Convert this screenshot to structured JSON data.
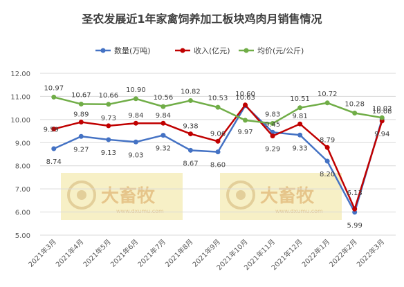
{
  "chart_data": {
    "type": "line",
    "title": "圣农发展近1年家禽饲养加工板块鸡肉月销售情况",
    "categories": [
      "2021年3月",
      "2021年4月",
      "2021年5月",
      "2021年6月",
      "2021年7月",
      "2021年8月",
      "2021年9月",
      "2021年10月",
      "2021年11月",
      "2021年12月",
      "2022年1月",
      "2022年2月",
      "2022年3月"
    ],
    "series": [
      {
        "name": "数量(万吨)",
        "color": "#4472c4",
        "values": [
          8.74,
          9.27,
          9.13,
          9.03,
          9.32,
          8.67,
          8.6,
          10.6,
          9.45,
          9.33,
          8.2,
          5.99,
          10.02
        ]
      },
      {
        "name": "收入(亿元)",
        "color": "#c00000",
        "values": [
          9.59,
          9.89,
          9.73,
          9.84,
          9.84,
          9.38,
          9.06,
          10.63,
          9.29,
          9.81,
          8.79,
          6.13,
          9.94
        ]
      },
      {
        "name": "均价(元/公斤)",
        "color": "#70ad47",
        "values": [
          10.97,
          10.67,
          10.66,
          10.9,
          10.56,
          10.82,
          10.53,
          9.97,
          9.83,
          10.51,
          10.72,
          10.28,
          10.08
        ]
      }
    ],
    "ylim": [
      5.0,
      12.0
    ],
    "yticks": [
      "5.00",
      "6.00",
      "7.00",
      "8.00",
      "9.00",
      "10.00",
      "11.00",
      "12.00"
    ],
    "grid": true,
    "legend": "top",
    "data_labels": {
      "qty": [
        "8.74",
        "9.27",
        "9.13",
        "9.03",
        "9.32",
        "8.67",
        "8.60",
        "10.60",
        "9.45",
        "9.33",
        "8.20",
        "5.99",
        "10.02"
      ],
      "rev": [
        "9.59",
        "9.89",
        "9.73",
        "9.84",
        "9.84",
        "9.38",
        "9.06",
        "10.63",
        "9.29",
        "9.81",
        "8.79",
        "6.13",
        "9.94"
      ],
      "price": [
        "10.97",
        "10.67",
        "10.66",
        "10.90",
        "10.56",
        "10.82",
        "10.53",
        "9.97",
        "9.83",
        "10.51",
        "10.72",
        "10.28",
        "10.08"
      ]
    }
  },
  "watermark": {
    "text": "大畜牧",
    "url": "www.dxumu.com",
    "color": "#f7f0c6"
  }
}
